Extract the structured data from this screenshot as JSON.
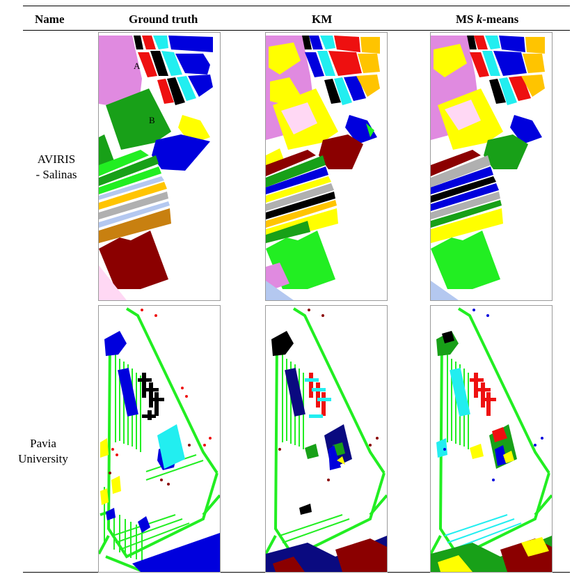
{
  "table": {
    "headers": {
      "name": "Name",
      "ground_truth": "Ground truth",
      "km": "KM",
      "ms_prefix": "MS ",
      "ms_k": "k",
      "ms_suffix": "-means"
    },
    "rows": [
      {
        "name_line1": "AVIRIS",
        "name_line2": "- Salinas",
        "gt_label_a": "A",
        "gt_label_b": "B"
      },
      {
        "name_line1": "Pavia",
        "name_line2": "University"
      }
    ]
  },
  "colors": {
    "magenta": "#e08ae0",
    "dark_green": "#18a018",
    "bright_green": "#22ee22",
    "blue": "#0000dd",
    "cyan": "#22eef0",
    "red": "#ee1010",
    "black": "#000000",
    "yellow": "#ffff00",
    "orange": "#ffc400",
    "maroon": "#8b0000",
    "light_blue": "#b4c8f0",
    "light_pink": "#ffd8f4",
    "gray": "#b0b0b0",
    "brown": "#c88010",
    "navy": "#0a0a80"
  }
}
